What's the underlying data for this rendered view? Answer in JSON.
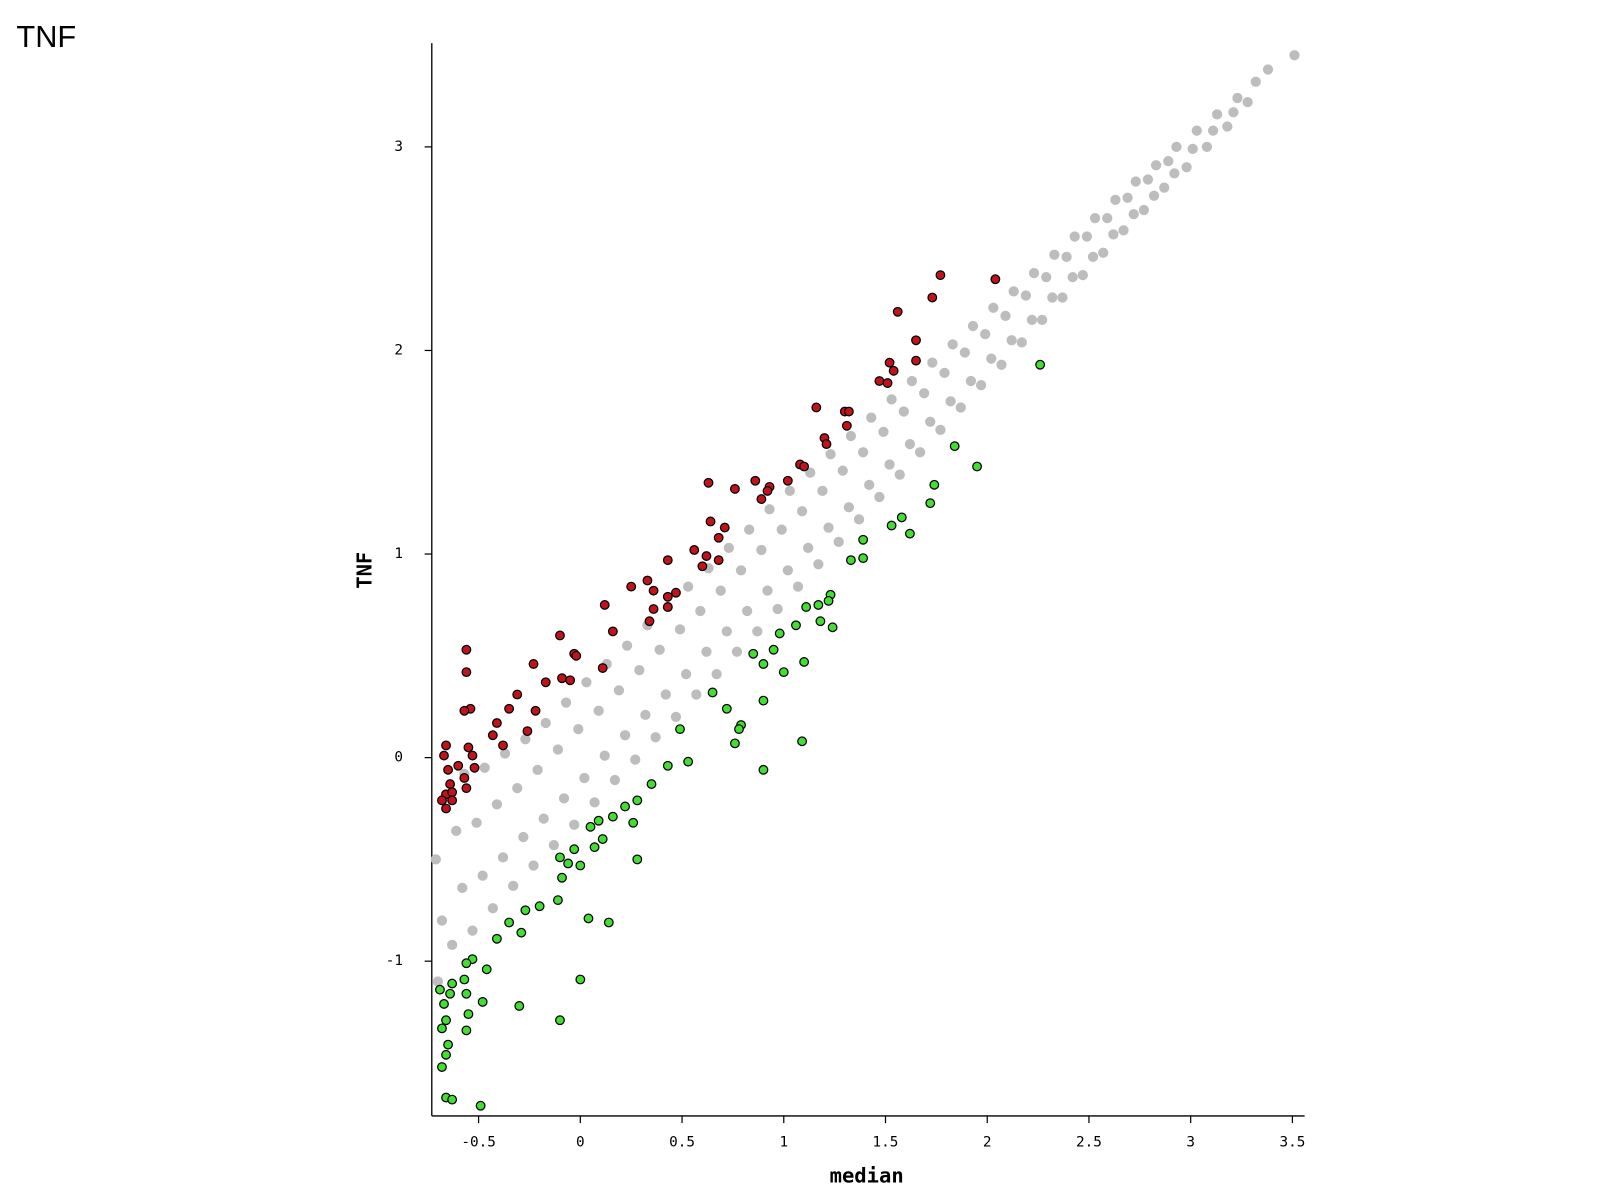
{
  "chart_data": {
    "type": "scatter",
    "title": "TNF",
    "x_label": "median",
    "y_label": "TNF",
    "xlim": [
      -0.73,
      3.56
    ],
    "ylim": [
      -1.76,
      3.51
    ],
    "xticks": [
      -0.5,
      0,
      0.5,
      1,
      1.5,
      2,
      2.5,
      3,
      3.5
    ],
    "yticks": [
      -1,
      0,
      1,
      2,
      3
    ],
    "grid": false,
    "series": [
      {
        "color": "#bdbdbd",
        "x": [
          -0.7,
          -0.68,
          -0.71,
          -0.67,
          -0.63,
          -0.58,
          -0.61,
          -0.57,
          -0.53,
          -0.48,
          -0.51,
          -0.47,
          -0.43,
          -0.38,
          -0.41,
          -0.37,
          -0.33,
          -0.28,
          -0.31,
          -0.27,
          -0.23,
          -0.18,
          -0.21,
          -0.17,
          -0.13,
          -0.08,
          -0.11,
          -0.07,
          -0.03,
          0.02,
          -0.01,
          0.03,
          0.07,
          0.12,
          0.09,
          0.13,
          0.17,
          0.22,
          0.19,
          0.23,
          0.27,
          0.32,
          0.29,
          0.33,
          0.37,
          0.42,
          0.39,
          0.43,
          0.47,
          0.52,
          0.49,
          0.53,
          0.57,
          0.62,
          0.59,
          0.63,
          0.67,
          0.72,
          0.69,
          0.73,
          0.77,
          0.82,
          0.79,
          0.83,
          0.87,
          0.92,
          0.89,
          0.93,
          0.97,
          1.02,
          0.99,
          1.03,
          1.07,
          1.12,
          1.09,
          1.13,
          1.17,
          1.22,
          1.19,
          1.23,
          1.27,
          1.32,
          1.29,
          1.33,
          1.37,
          1.42,
          1.39,
          1.43,
          1.47,
          1.52,
          1.49,
          1.53,
          1.57,
          1.62,
          1.59,
          1.63,
          1.67,
          1.72,
          1.69,
          1.73,
          1.77,
          1.82,
          1.79,
          1.83,
          1.87,
          1.92,
          1.89,
          1.93,
          1.97,
          2.02,
          1.99,
          2.03,
          2.07,
          2.12,
          2.09,
          2.13,
          2.17,
          2.22,
          2.19,
          2.23,
          2.27,
          2.32,
          2.29,
          2.33,
          2.37,
          2.42,
          2.39,
          2.43,
          2.47,
          2.52,
          2.49,
          2.53,
          2.57,
          2.62,
          2.59,
          2.63,
          2.67,
          2.72,
          2.69,
          2.73,
          2.77,
          2.82,
          2.79,
          2.83,
          2.87,
          2.92,
          2.89,
          2.93,
          2.98,
          3.01,
          3.03,
          3.08,
          3.11,
          3.13,
          3.18,
          3.21,
          3.23,
          3.28,
          3.32,
          3.38,
          3.51
        ],
        "y": [
          -1.1,
          -0.8,
          -0.5,
          -0.2,
          -0.92,
          -0.64,
          -0.36,
          -0.08,
          -0.85,
          -0.58,
          -0.32,
          -0.05,
          -0.74,
          -0.49,
          -0.23,
          0.02,
          -0.63,
          -0.39,
          -0.15,
          0.09,
          -0.53,
          -0.3,
          -0.06,
          0.17,
          -0.43,
          -0.2,
          0.04,
          0.27,
          -0.33,
          -0.1,
          0.14,
          0.37,
          -0.22,
          0.01,
          0.23,
          0.46,
          -0.11,
          0.11,
          0.33,
          0.55,
          -0.01,
          0.21,
          0.43,
          0.65,
          0.1,
          0.31,
          0.53,
          0.74,
          0.2,
          0.41,
          0.63,
          0.84,
          0.31,
          0.52,
          0.72,
          0.93,
          0.41,
          0.62,
          0.82,
          1.03,
          0.52,
          0.72,
          0.92,
          1.12,
          0.62,
          0.82,
          1.02,
          1.22,
          0.73,
          0.92,
          1.12,
          1.31,
          0.84,
          1.03,
          1.21,
          1.4,
          0.95,
          1.13,
          1.31,
          1.49,
          1.06,
          1.23,
          1.41,
          1.58,
          1.17,
          1.34,
          1.5,
          1.67,
          1.28,
          1.44,
          1.6,
          1.76,
          1.39,
          1.54,
          1.7,
          1.85,
          1.5,
          1.65,
          1.79,
          1.94,
          1.61,
          1.75,
          1.89,
          2.03,
          1.72,
          1.85,
          1.99,
          2.12,
          1.83,
          1.96,
          2.08,
          2.21,
          1.93,
          2.05,
          2.17,
          2.29,
          2.04,
          2.15,
          2.27,
          2.38,
          2.15,
          2.26,
          2.36,
          2.47,
          2.26,
          2.36,
          2.46,
          2.56,
          2.37,
          2.46,
          2.56,
          2.65,
          2.48,
          2.57,
          2.65,
          2.74,
          2.59,
          2.67,
          2.75,
          2.83,
          2.69,
          2.76,
          2.84,
          2.91,
          2.8,
          2.87,
          2.93,
          3.0,
          2.9,
          2.99,
          3.08,
          3.0,
          3.08,
          3.16,
          3.1,
          3.17,
          3.24,
          3.22,
          3.32,
          3.38,
          3.45
        ]
      },
      {
        "color": "#c0141c",
        "edgecolor": "#000000",
        "x": [
          1.77,
          2.04,
          1.73,
          1.56,
          1.65,
          1.65,
          1.52,
          1.54,
          1.47,
          1.51,
          1.16,
          1.3,
          1.32,
          1.31,
          1.2,
          1.21,
          1.08,
          1.1,
          0.86,
          0.63,
          0.76,
          0.93,
          1.02,
          0.92,
          0.89,
          0.64,
          0.71,
          0.68,
          0.56,
          0.62,
          0.6,
          0.43,
          0.68,
          0.33,
          0.25,
          0.47,
          0.43,
          0.36,
          0.12,
          0.36,
          0.43,
          0.34,
          0.16,
          -0.1,
          -0.03,
          -0.02,
          -0.56,
          -0.56,
          -0.23,
          0.11,
          -0.09,
          -0.05,
          -0.17,
          -0.31,
          -0.54,
          -0.57,
          -0.35,
          -0.22,
          -0.41,
          -0.43,
          -0.26,
          -0.38,
          -0.66,
          -0.55,
          -0.67,
          -0.53,
          -0.6,
          -0.52,
          -0.65,
          -0.57,
          -0.64,
          -0.56,
          -0.66,
          -0.63,
          -0.68,
          -0.66,
          -0.63
        ],
        "y": [
          2.37,
          2.35,
          2.26,
          2.19,
          2.05,
          1.95,
          1.94,
          1.9,
          1.85,
          1.84,
          1.72,
          1.7,
          1.7,
          1.63,
          1.57,
          1.54,
          1.44,
          1.43,
          1.36,
          1.35,
          1.32,
          1.33,
          1.36,
          1.31,
          1.27,
          1.16,
          1.13,
          1.08,
          1.02,
          0.99,
          0.94,
          0.97,
          0.97,
          0.87,
          0.84,
          0.81,
          0.79,
          0.82,
          0.75,
          0.73,
          0.74,
          0.67,
          0.62,
          0.6,
          0.51,
          0.5,
          0.53,
          0.42,
          0.46,
          0.44,
          0.39,
          0.38,
          0.37,
          0.31,
          0.24,
          0.23,
          0.24,
          0.23,
          0.17,
          0.11,
          0.13,
          0.06,
          0.06,
          0.05,
          0.01,
          0.01,
          -0.04,
          -0.05,
          -0.06,
          -0.1,
          -0.13,
          -0.15,
          -0.18,
          -0.17,
          -0.21,
          -0.25,
          -0.21
        ]
      },
      {
        "color": "#44dd33",
        "edgecolor": "#000000",
        "x": [
          2.26,
          1.84,
          1.95,
          1.74,
          1.72,
          1.58,
          1.53,
          1.62,
          1.39,
          1.33,
          1.39,
          1.23,
          1.22,
          1.11,
          1.17,
          1.18,
          1.24,
          1.06,
          0.98,
          0.95,
          0.85,
          0.9,
          1.1,
          1.0,
          0.65,
          0.9,
          0.72,
          0.79,
          0.78,
          0.49,
          0.76,
          1.09,
          0.53,
          0.43,
          0.9,
          0.35,
          0.28,
          0.22,
          0.16,
          0.26,
          0.09,
          0.05,
          0.11,
          0.07,
          -0.03,
          -0.1,
          -0.06,
          0,
          0.28,
          -0.09,
          -0.11,
          -0.2,
          -0.27,
          0.04,
          0.14,
          -0.35,
          -0.29,
          -0.41,
          -0.53,
          -0.46,
          -0.56,
          -0.57,
          0,
          -0.63,
          -0.69,
          -0.64,
          -0.56,
          -0.67,
          -0.48,
          -0.55,
          -0.3,
          -0.66,
          -0.1,
          -0.56,
          -0.68,
          -0.65,
          -0.66,
          -0.68,
          -0.66,
          -0.63,
          -0.49
        ],
        "y": [
          1.93,
          1.53,
          1.43,
          1.34,
          1.25,
          1.18,
          1.14,
          1.1,
          1.07,
          0.97,
          0.98,
          0.8,
          0.77,
          0.74,
          0.75,
          0.67,
          0.64,
          0.65,
          0.61,
          0.53,
          0.51,
          0.46,
          0.47,
          0.42,
          0.32,
          0.28,
          0.24,
          0.16,
          0.14,
          0.14,
          0.07,
          0.08,
          -0.02,
          -0.04,
          -0.06,
          -0.13,
          -0.21,
          -0.24,
          -0.29,
          -0.32,
          -0.31,
          -0.34,
          -0.4,
          -0.44,
          -0.45,
          -0.49,
          -0.52,
          -0.53,
          -0.5,
          -0.59,
          -0.7,
          -0.73,
          -0.75,
          -0.79,
          -0.81,
          -0.81,
          -0.86,
          -0.89,
          -0.99,
          -1.04,
          -1.01,
          -1.09,
          -1.09,
          -1.11,
          -1.14,
          -1.16,
          -1.16,
          -1.21,
          -1.2,
          -1.26,
          -1.22,
          -1.29,
          -1.29,
          -1.34,
          -1.33,
          -1.41,
          -1.46,
          -1.52,
          -1.67,
          -1.68,
          -1.71
        ]
      }
    ]
  }
}
